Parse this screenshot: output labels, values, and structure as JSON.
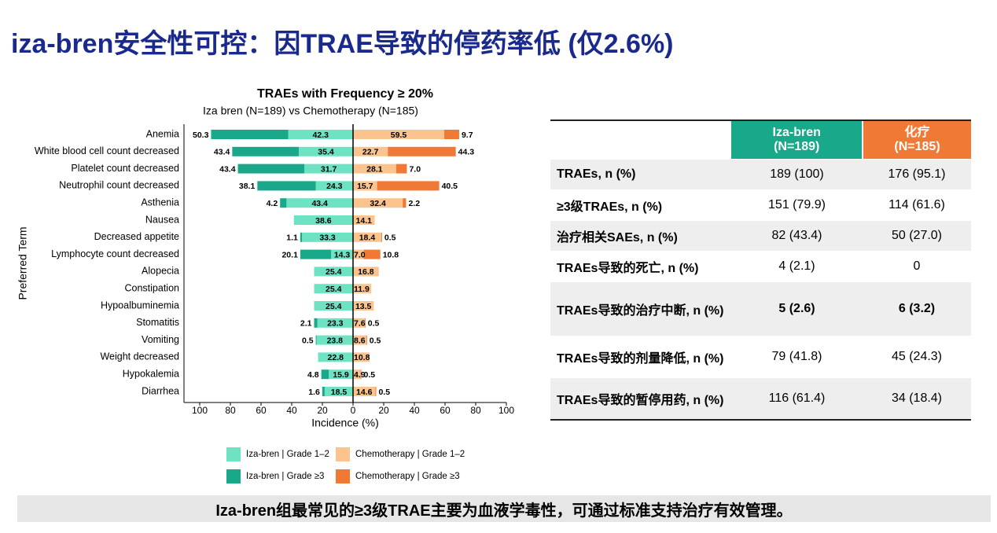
{
  "header": {
    "title": "iza-bren安全性可控：因TRAE导致的停药率低 (仅2.6%)"
  },
  "chart_data": {
    "type": "butterfly-bar",
    "title": "TRAEs with Frequency ≥ 20%",
    "subtitle": "Iza bren (N=189) vs Chemotherapy (N=185)",
    "x_label": "Incidence (%)",
    "y_label": "Preferred Term",
    "categories": [
      "Anemia",
      "White blood cell count decreased",
      "Platelet count decreased",
      "Neutrophil count decreased",
      "Asthenia",
      "Nausea",
      "Decreased appetite",
      "Lymphocyte count decreased",
      "Alopecia",
      "Constipation",
      "Hypoalbuminemia",
      "Stomatitis",
      "Vomiting",
      "Weight decreased",
      "Hypokalemia",
      "Diarrhea"
    ],
    "series": [
      {
        "name": "Iza-bren | Grade 1–2",
        "color": "#6ee3c4",
        "values": [
          42.3,
          35.4,
          31.7,
          24.3,
          43.4,
          38.6,
          33.3,
          14.3,
          25.4,
          25.4,
          25.4,
          23.3,
          23.8,
          22.8,
          15.9,
          18.5
        ],
        "value_labels": [
          "42.3",
          "35.4",
          "31.7",
          "24.3",
          "43.4",
          "38.6",
          "33.3",
          "14.3",
          "25.4",
          "25.4",
          "25.4",
          "23.3",
          "23.8",
          "22.8",
          "15.9",
          "18.5"
        ]
      },
      {
        "name": "Iza-bren | Grade ≥3",
        "color": "#1aa88a",
        "values": [
          50.3,
          43.4,
          43.4,
          38.1,
          4.2,
          null,
          1.1,
          20.1,
          null,
          null,
          null,
          2.1,
          0.5,
          null,
          4.8,
          1.6
        ],
        "value_labels": [
          "50.3",
          "43.4",
          "43.4",
          "38.1",
          "4.2",
          null,
          "1.1",
          "20.1",
          null,
          null,
          null,
          "2.1",
          "0.5",
          null,
          "4.8",
          "1.6"
        ]
      },
      {
        "name": "Chemotherapy | Grade 1–2",
        "color": "#fbc48f",
        "values": [
          59.5,
          22.7,
          28.1,
          15.7,
          32.4,
          14.1,
          18.4,
          7.0,
          16.8,
          11.9,
          13.5,
          7.6,
          8.6,
          10.8,
          4.9,
          14.6
        ],
        "value_labels": [
          "59.5",
          "22.7",
          "28.1",
          "15.7",
          "32.4",
          "14.1",
          "18.4",
          "7.0",
          "16.8",
          "11.9",
          "13.5",
          "7.6",
          "8.6",
          "10.8",
          "4.9",
          "14.6"
        ]
      },
      {
        "name": "Chemotherapy | Grade ≥3",
        "color": "#f07a35",
        "values": [
          9.7,
          44.3,
          7.0,
          40.5,
          2.2,
          null,
          0.5,
          10.8,
          null,
          null,
          null,
          0.5,
          0.5,
          null,
          0.5,
          0.5
        ],
        "value_labels": [
          "9.7",
          "44.3",
          "7.0",
          "40.5",
          "2.2",
          null,
          "0.5",
          "10.8",
          null,
          null,
          null,
          "0.5",
          "0.5",
          null,
          "0.5",
          "0.5"
        ]
      }
    ],
    "xlim": [
      -100,
      100
    ],
    "xticks": [
      {
        "value": -100,
        "label": "100"
      },
      {
        "value": -80,
        "label": "80"
      },
      {
        "value": -60,
        "label": "60"
      },
      {
        "value": -40,
        "label": "40"
      },
      {
        "value": -20,
        "label": "20"
      },
      0,
      20,
      40,
      60,
      80,
      100
    ]
  },
  "table": {
    "columns": [
      [
        "Iza-bren",
        "(N=189)"
      ],
      [
        "化疗",
        "(N=185)"
      ]
    ],
    "rows": [
      [
        "TRAEs, n (%)",
        "189 (100)",
        "176 (95.1)"
      ],
      [
        "≥3级TRAEs, n (%)",
        "151 (79.9)",
        "114 (61.6)"
      ],
      [
        "治疗相关SAEs, n (%)",
        "82 (43.4)",
        "50 (27.0)"
      ],
      [
        "TRAEs导致的死亡, n (%)",
        "4 (2.1)",
        "0"
      ],
      [
        "TRAEs导致的治疗中断, n (%)",
        "5 (2.6)",
        "6 (3.2)"
      ],
      [
        "TRAEs导致的剂量降低, n (%)",
        "79 (41.8)",
        "45 (24.3)"
      ],
      [
        "TRAEs导致的暂停用药, n (%)",
        "116 (61.4)",
        "34 (18.4)"
      ]
    ]
  },
  "footer": {
    "text": "Iza-bren组最常见的≥3级TRAE主要为血液学毒性，可通过标准支持治疗有效管理。"
  }
}
